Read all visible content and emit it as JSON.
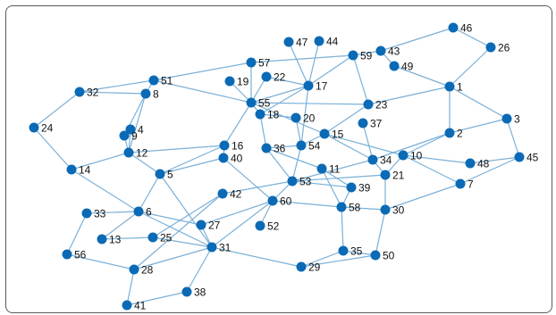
{
  "graph": {
    "nodes": [
      "1",
      "2",
      "3",
      "4",
      "5",
      "6",
      "7",
      "8",
      "9",
      "10",
      "11",
      "12",
      "13",
      "14",
      "15",
      "16",
      "17",
      "18",
      "19",
      "20",
      "21",
      "22",
      "23",
      "24",
      "25",
      "26",
      "27",
      "28",
      "29",
      "30",
      "31",
      "33",
      "32",
      "34",
      "35",
      "36",
      "37",
      "38",
      "39",
      "40",
      "41",
      "42",
      "43",
      "44",
      "45",
      "46",
      "47",
      "48",
      "49",
      "50",
      "51",
      "52",
      "53",
      "54",
      "55",
      "56",
      "57",
      "58",
      "59",
      "60"
    ],
    "edges": [
      [
        "46",
        "26"
      ],
      [
        "46",
        "43"
      ],
      [
        "26",
        "1"
      ],
      [
        "43",
        "59"
      ],
      [
        "43",
        "49"
      ],
      [
        "49",
        "1"
      ],
      [
        "1",
        "23"
      ],
      [
        "1",
        "2"
      ],
      [
        "1",
        "3"
      ],
      [
        "3",
        "2"
      ],
      [
        "3",
        "45"
      ],
      [
        "2",
        "10"
      ],
      [
        "2",
        "34"
      ],
      [
        "45",
        "7"
      ],
      [
        "45",
        "48"
      ],
      [
        "7",
        "10"
      ],
      [
        "7",
        "30"
      ],
      [
        "10",
        "48"
      ],
      [
        "10",
        "21"
      ],
      [
        "10",
        "15"
      ],
      [
        "57",
        "59"
      ],
      [
        "57",
        "55"
      ],
      [
        "57",
        "51"
      ],
      [
        "59",
        "17"
      ],
      [
        "59",
        "23"
      ],
      [
        "47",
        "17"
      ],
      [
        "44",
        "17"
      ],
      [
        "17",
        "55"
      ],
      [
        "17",
        "22"
      ],
      [
        "17",
        "54"
      ],
      [
        "17",
        "18"
      ],
      [
        "22",
        "55"
      ],
      [
        "19",
        "55"
      ],
      [
        "23",
        "55"
      ],
      [
        "23",
        "15"
      ],
      [
        "37",
        "34"
      ],
      [
        "55",
        "16"
      ],
      [
        "55",
        "18"
      ],
      [
        "55",
        "15"
      ],
      [
        "18",
        "36"
      ],
      [
        "18",
        "20"
      ],
      [
        "20",
        "54"
      ],
      [
        "54",
        "15"
      ],
      [
        "54",
        "53"
      ],
      [
        "54",
        "36"
      ],
      [
        "15",
        "34"
      ],
      [
        "34",
        "53"
      ],
      [
        "34",
        "21"
      ],
      [
        "21",
        "53"
      ],
      [
        "21",
        "30"
      ],
      [
        "11",
        "36"
      ],
      [
        "11",
        "58"
      ],
      [
        "11",
        "39"
      ],
      [
        "36",
        "53"
      ],
      [
        "16",
        "12"
      ],
      [
        "16",
        "5"
      ],
      [
        "16",
        "40"
      ],
      [
        "40",
        "60"
      ],
      [
        "40",
        "5"
      ],
      [
        "53",
        "60"
      ],
      [
        "53",
        "39"
      ],
      [
        "53",
        "42"
      ],
      [
        "39",
        "58"
      ],
      [
        "58",
        "60"
      ],
      [
        "58",
        "35"
      ],
      [
        "58",
        "30"
      ],
      [
        "30",
        "50"
      ],
      [
        "35",
        "50"
      ],
      [
        "35",
        "29"
      ],
      [
        "60",
        "52"
      ],
      [
        "60",
        "31"
      ],
      [
        "60",
        "27"
      ],
      [
        "42",
        "25"
      ],
      [
        "42",
        "28"
      ],
      [
        "29",
        "31"
      ],
      [
        "51",
        "32"
      ],
      [
        "51",
        "8"
      ],
      [
        "51",
        "55"
      ],
      [
        "32",
        "24"
      ],
      [
        "32",
        "8"
      ],
      [
        "8",
        "9"
      ],
      [
        "8",
        "12"
      ],
      [
        "4",
        "9"
      ],
      [
        "4",
        "12"
      ],
      [
        "9",
        "12"
      ],
      [
        "12",
        "5"
      ],
      [
        "12",
        "14"
      ],
      [
        "24",
        "14"
      ],
      [
        "14",
        "6"
      ],
      [
        "5",
        "6"
      ],
      [
        "5",
        "31"
      ],
      [
        "6",
        "27"
      ],
      [
        "6",
        "31"
      ],
      [
        "6",
        "13"
      ],
      [
        "33",
        "6"
      ],
      [
        "33",
        "56"
      ],
      [
        "56",
        "28"
      ],
      [
        "13",
        "25"
      ],
      [
        "25",
        "31"
      ],
      [
        "27",
        "31"
      ],
      [
        "31",
        "28"
      ],
      [
        "31",
        "38"
      ],
      [
        "28",
        "41"
      ],
      [
        "38",
        "41"
      ],
      [
        "29",
        "50"
      ]
    ]
  }
}
